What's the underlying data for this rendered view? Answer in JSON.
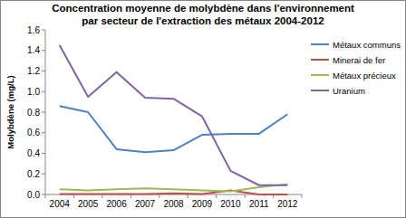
{
  "chart_data": {
    "type": "line",
    "title": [
      "Concentration moyenne de molybdène dans l'environnement",
      "par secteur de l'extraction des métaux 2004-2012"
    ],
    "y_label": "Molybdène (mg/L)",
    "categories": [
      "2004",
      "2005",
      "2006",
      "2007",
      "2008",
      "2009",
      "2010",
      "2011",
      "2012"
    ],
    "series": [
      {
        "name": "Métaux communs",
        "color": "#4f81bd",
        "values": [
          0.86,
          0.8,
          0.44,
          0.41,
          0.43,
          0.58,
          0.59,
          0.59,
          0.78
        ]
      },
      {
        "name": "Minerai de fer",
        "color": "#c0504d",
        "values": [
          0.005,
          0.005,
          0.005,
          0.005,
          0.01,
          0.005,
          0.04,
          0.0,
          0.0
        ]
      },
      {
        "name": "Métaux précieux",
        "color": "#9bbb59",
        "values": [
          0.05,
          0.04,
          0.05,
          0.06,
          0.05,
          0.04,
          0.03,
          0.07,
          0.1
        ]
      },
      {
        "name": "Uranium",
        "color": "#8064a2",
        "values": [
          1.45,
          0.95,
          1.19,
          0.94,
          0.93,
          0.76,
          0.23,
          0.09,
          0.09
        ]
      }
    ],
    "ylim": [
      0,
      1.6
    ],
    "yticks": [
      {
        "value": 0,
        "label": "0.0"
      },
      0.2,
      0.4,
      0.6,
      0.8,
      {
        "value": 1,
        "label": "1.0"
      },
      1.2,
      1.4,
      1.6
    ],
    "grid": false,
    "legend": "right"
  }
}
